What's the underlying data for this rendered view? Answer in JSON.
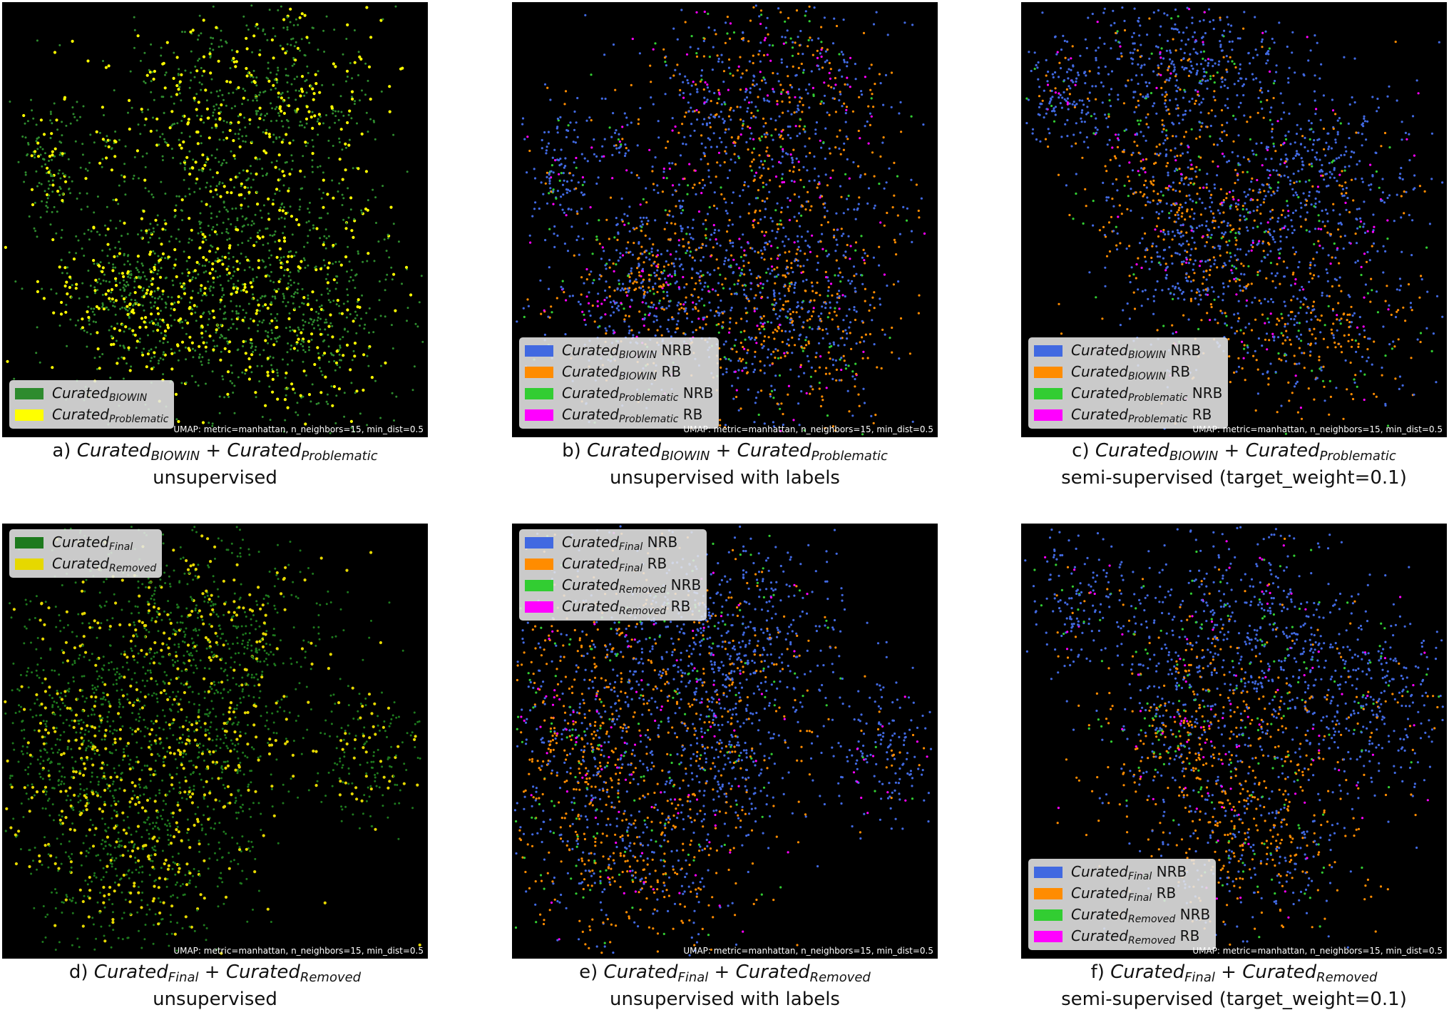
{
  "umap_note": "UMAP: metric=manhattan, n_neighbors=15, min_dist=0.5",
  "colors": {
    "biowin_green": "#2e8b2e",
    "problematic_yellow": "#ffff00",
    "final_green": "#1e7a1e",
    "removed_yellow": "#e6d800",
    "nrb_blue": "#4169e1",
    "rb_orange": "#ff8c00",
    "removed_nrb_green": "#32cd32",
    "removed_rb_magenta": "#ff00ff"
  },
  "panels": [
    {
      "id": "a",
      "caption": {
        "prefix": "a) ",
        "t1": "Curated",
        "s1": "BIOWIN",
        "plus": " + ",
        "t2": "Curated",
        "s2": "Problematic",
        "line2": "unsupervised"
      },
      "legend": [
        {
          "label": "Curated",
          "sub": "BIOWIN",
          "suffix": "",
          "color": "#2e8b2e"
        },
        {
          "label": "Curated",
          "sub": "Problematic",
          "suffix": "",
          "color": "#ffff00"
        }
      ]
    },
    {
      "id": "b",
      "caption": {
        "prefix": "b) ",
        "t1": "Curated",
        "s1": "BIOWIN",
        "plus": " + ",
        "t2": "Curated",
        "s2": "Problematic",
        "line2": "unsupervised with labels"
      },
      "legend": [
        {
          "label": "Curated",
          "sub": "BIOWIN",
          "suffix": " NRB",
          "color": "#4169e1"
        },
        {
          "label": "Curated",
          "sub": "BIOWIN",
          "suffix": " RB",
          "color": "#ff8c00"
        },
        {
          "label": "Curated",
          "sub": "Problematic",
          "suffix": " NRB",
          "color": "#32cd32"
        },
        {
          "label": "Curated",
          "sub": "Problematic",
          "suffix": " RB",
          "color": "#ff00ff"
        }
      ]
    },
    {
      "id": "c",
      "caption": {
        "prefix": "c) ",
        "t1": "Curated",
        "s1": "BIOWIN",
        "plus": " + ",
        "t2": "Curated",
        "s2": "Problematic",
        "line2": "semi-supervised (target_weight=0.1)"
      },
      "legend": [
        {
          "label": "Curated",
          "sub": "BIOWIN",
          "suffix": " NRB",
          "color": "#4169e1"
        },
        {
          "label": "Curated",
          "sub": "BIOWIN",
          "suffix": " RB",
          "color": "#ff8c00"
        },
        {
          "label": "Curated",
          "sub": "Problematic",
          "suffix": " NRB",
          "color": "#32cd32"
        },
        {
          "label": "Curated",
          "sub": "Problematic",
          "suffix": " RB",
          "color": "#ff00ff"
        }
      ]
    },
    {
      "id": "d",
      "caption": {
        "prefix": "d) ",
        "t1": "Curated",
        "s1": "Final",
        "plus": " + ",
        "t2": "Curated",
        "s2": "Removed",
        "line2": "unsupervised"
      },
      "legend": [
        {
          "label": "Curated",
          "sub": "Final",
          "suffix": "",
          "color": "#1e7a1e"
        },
        {
          "label": "Curated",
          "sub": "Removed",
          "suffix": "",
          "color": "#e6d800"
        }
      ]
    },
    {
      "id": "e",
      "caption": {
        "prefix": "e) ",
        "t1": "Curated",
        "s1": "Final",
        "plus": " + ",
        "t2": "Curated",
        "s2": "Removed",
        "line2": "unsupervised with labels"
      },
      "legend": [
        {
          "label": "Curated",
          "sub": "Final",
          "suffix": " NRB",
          "color": "#4169e1"
        },
        {
          "label": "Curated",
          "sub": "Final",
          "suffix": " RB",
          "color": "#ff8c00"
        },
        {
          "label": "Curated",
          "sub": "Removed",
          "suffix": " NRB",
          "color": "#32cd32"
        },
        {
          "label": "Curated",
          "sub": "Removed",
          "suffix": " RB",
          "color": "#ff00ff"
        }
      ]
    },
    {
      "id": "f",
      "caption": {
        "prefix": "f) ",
        "t1": "Curated",
        "s1": "Final",
        "plus": " + ",
        "t2": "Curated",
        "s2": "Removed",
        "line2": "semi-supervised (target_weight=0.1)"
      },
      "legend": [
        {
          "label": "Curated",
          "sub": "Final",
          "suffix": " NRB",
          "color": "#4169e1"
        },
        {
          "label": "Curated",
          "sub": "Final",
          "suffix": " RB",
          "color": "#ff8c00"
        },
        {
          "label": "Curated",
          "sub": "Removed",
          "suffix": " NRB",
          "color": "#32cd32"
        },
        {
          "label": "Curated",
          "sub": "Removed",
          "suffix": " RB",
          "color": "#ff00ff"
        }
      ]
    }
  ],
  "chart_data": [
    {
      "type": "scatter",
      "id": "a",
      "grid": false,
      "legend_position": "lower-left",
      "series": [
        {
          "name": "Curated BIOWIN",
          "color": "#2e8b2e"
        },
        {
          "name": "Curated Problematic",
          "color": "#ffff00"
        }
      ]
    },
    {
      "type": "scatter",
      "id": "b",
      "grid": false,
      "legend_position": "lower-left",
      "series": [
        {
          "name": "Curated BIOWIN NRB",
          "color": "#4169e1"
        },
        {
          "name": "Curated BIOWIN RB",
          "color": "#ff8c00"
        },
        {
          "name": "Curated Problematic NRB",
          "color": "#32cd32"
        },
        {
          "name": "Curated Problematic RB",
          "color": "#ff00ff"
        }
      ]
    },
    {
      "type": "scatter",
      "id": "c",
      "grid": false,
      "legend_position": "lower-left",
      "series": [
        {
          "name": "Curated BIOWIN NRB",
          "color": "#4169e1"
        },
        {
          "name": "Curated BIOWIN RB",
          "color": "#ff8c00"
        },
        {
          "name": "Curated Problematic NRB",
          "color": "#32cd32"
        },
        {
          "name": "Curated Problematic RB",
          "color": "#ff00ff"
        }
      ]
    },
    {
      "type": "scatter",
      "id": "d",
      "grid": false,
      "legend_position": "upper-left",
      "series": [
        {
          "name": "Curated Final",
          "color": "#1e7a1e"
        },
        {
          "name": "Curated Removed",
          "color": "#e6d800"
        }
      ]
    },
    {
      "type": "scatter",
      "id": "e",
      "grid": false,
      "legend_position": "upper-left",
      "series": [
        {
          "name": "Curated Final NRB",
          "color": "#4169e1"
        },
        {
          "name": "Curated Final RB",
          "color": "#ff8c00"
        },
        {
          "name": "Curated Removed NRB",
          "color": "#32cd32"
        },
        {
          "name": "Curated Removed RB",
          "color": "#ff00ff"
        }
      ]
    },
    {
      "type": "scatter",
      "id": "f",
      "grid": false,
      "legend_position": "lower-left",
      "series": [
        {
          "name": "Curated Final NRB",
          "color": "#4169e1"
        },
        {
          "name": "Curated Final RB",
          "color": "#ff8c00"
        },
        {
          "name": "Curated Removed NRB",
          "color": "#32cd32"
        },
        {
          "name": "Curated Removed RB",
          "color": "#ff00ff"
        }
      ]
    }
  ]
}
